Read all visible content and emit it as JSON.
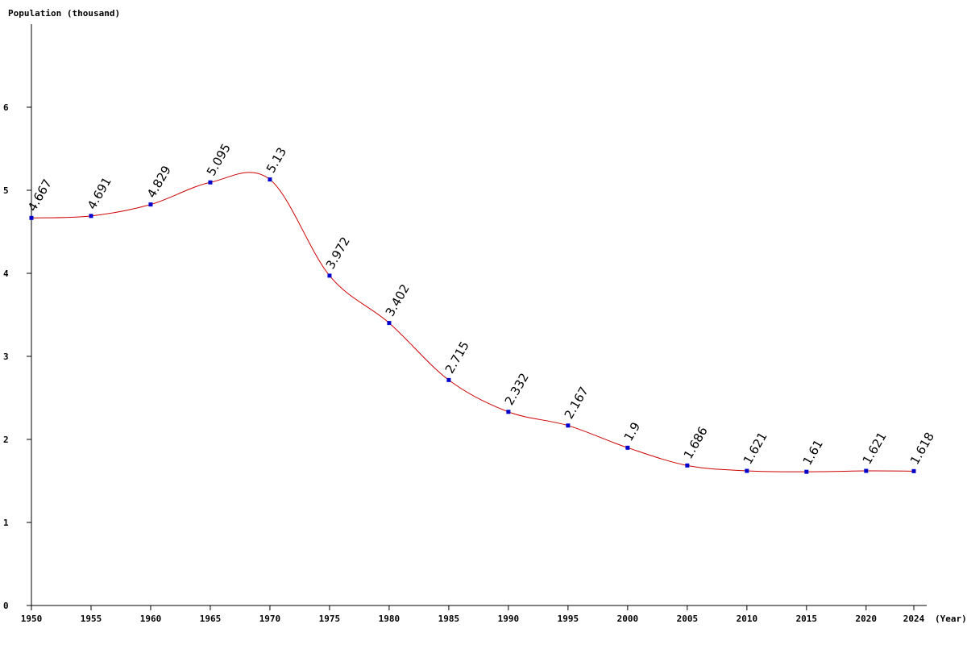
{
  "chart_data": {
    "type": "line",
    "ylabel": "Population (thousand)",
    "xlabel": "(Year)",
    "x": [
      1950,
      1955,
      1960,
      1965,
      1970,
      1975,
      1980,
      1985,
      1990,
      1995,
      2000,
      2005,
      2010,
      2015,
      2020,
      2024
    ],
    "x_tick_labels": [
      "1950",
      "1955",
      "1960",
      "1965",
      "1970",
      "1975",
      "1980",
      "1985",
      "1990",
      "1995",
      "2000",
      "2005",
      "2010",
      "2015",
      "2020",
      "2024"
    ],
    "series": [
      {
        "values": [
          4.667,
          4.691,
          4.829,
          5.095,
          5.13,
          3.972,
          3.402,
          2.715,
          2.332,
          2.167,
          1.9,
          1.686,
          1.621,
          1.61,
          1.621,
          1.618
        ],
        "data_labels": [
          "4.667",
          "4.691",
          "4.829",
          "5.095",
          "5.13",
          "3.972",
          "3.402",
          "2.715",
          "2.332",
          "2.167",
          "1.9",
          "1.686",
          "1.621",
          "1.61",
          "1.621",
          "1.618"
        ]
      }
    ],
    "y_ticks": [
      0,
      1,
      2,
      3,
      4,
      5,
      6
    ],
    "ylim": [
      0,
      7
    ],
    "xlim": [
      1950,
      2024
    ],
    "grid": false,
    "colors": {
      "line": "#cc0000",
      "marker": "#0000cc",
      "axis": "#000000"
    }
  }
}
